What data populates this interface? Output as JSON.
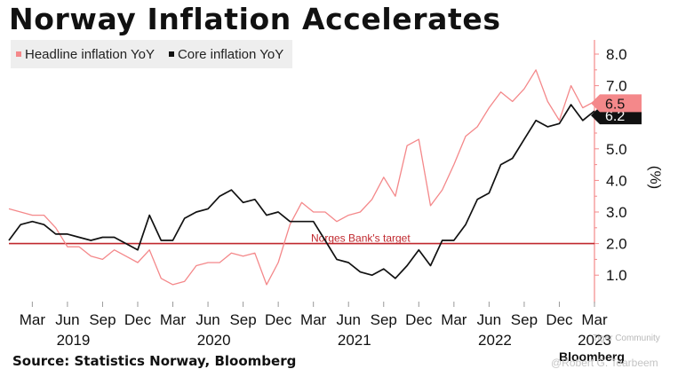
{
  "chart_data": {
    "type": "line",
    "title": "Norway Inflation Accelerates",
    "ylabel": "(%)",
    "ylim": [
      0.3,
      8.5
    ],
    "x_index_range": [
      0,
      51
    ],
    "yticks": [
      "1.0",
      "2.0",
      "3.0",
      "4.0",
      "5.0",
      "6.0",
      "7.0",
      "8.0"
    ],
    "ytick_values": [
      1,
      2,
      3,
      4,
      5,
      6,
      7,
      8
    ],
    "xtick_labels": [
      "Mar",
      "Jun",
      "Sep",
      "Dec",
      "Mar",
      "Jun",
      "Sep",
      "Dec",
      "Mar",
      "Jun",
      "Sep",
      "Dec",
      "Mar",
      "Jun",
      "Sep",
      "Dec",
      "Mar"
    ],
    "xtick_index": [
      2,
      5,
      8,
      11,
      14,
      17,
      20,
      23,
      26,
      29,
      32,
      35,
      38,
      41,
      44,
      47,
      50
    ],
    "year_labels": [
      "2019",
      "2020",
      "2021",
      "2022",
      "2023"
    ],
    "year_index": [
      5.5,
      17.5,
      29.5,
      41.5,
      50
    ],
    "reference_line": {
      "value": 2.0,
      "label": "Norges Bank's target",
      "color": "#c0282e"
    },
    "series": [
      {
        "name": "Headline inflation YoY",
        "color": "#f4888a",
        "start": "Jan 2019",
        "values": [
          3.1,
          3.0,
          2.9,
          2.9,
          2.5,
          1.9,
          1.9,
          1.6,
          1.5,
          1.8,
          1.6,
          1.4,
          1.8,
          0.9,
          0.7,
          0.8,
          1.3,
          1.4,
          1.4,
          1.7,
          1.6,
          1.7,
          0.7,
          1.4,
          2.6,
          3.3,
          3.0,
          3.0,
          2.7,
          2.9,
          3.0,
          3.4,
          4.1,
          3.5,
          5.1,
          5.3,
          3.2,
          3.7,
          4.5,
          5.4,
          5.7,
          6.3,
          6.8,
          6.5,
          6.9,
          7.5,
          6.5,
          5.9,
          7.0,
          6.3,
          6.5
        ],
        "last_value_label": "6.5"
      },
      {
        "name": "Core inflation YoY",
        "color": "#111111",
        "start": "Jan 2019",
        "values": [
          2.1,
          2.6,
          2.7,
          2.6,
          2.3,
          2.3,
          2.2,
          2.1,
          2.2,
          2.2,
          2.0,
          1.8,
          2.9,
          2.1,
          2.1,
          2.8,
          3.0,
          3.1,
          3.5,
          3.7,
          3.3,
          3.4,
          2.9,
          3.0,
          2.7,
          2.7,
          2.7,
          2.1,
          1.5,
          1.4,
          1.1,
          1.0,
          1.2,
          0.9,
          1.3,
          1.8,
          1.3,
          2.1,
          2.1,
          2.6,
          3.4,
          3.6,
          4.5,
          4.7,
          5.3,
          5.9,
          5.7,
          5.8,
          6.4,
          5.9,
          6.2
        ],
        "last_value_label": "6.2"
      }
    ]
  },
  "source": "Source: Statistics Norway, Bloomberg",
  "brand": "Bloomberg",
  "watermark": {
    "line1": "Tiger Community",
    "line2": "@Robert G. Tearbeem"
  },
  "colors": {
    "axis": "#f4888a",
    "target": "#c0282e",
    "headline": "#f4888a",
    "core": "#111111"
  }
}
